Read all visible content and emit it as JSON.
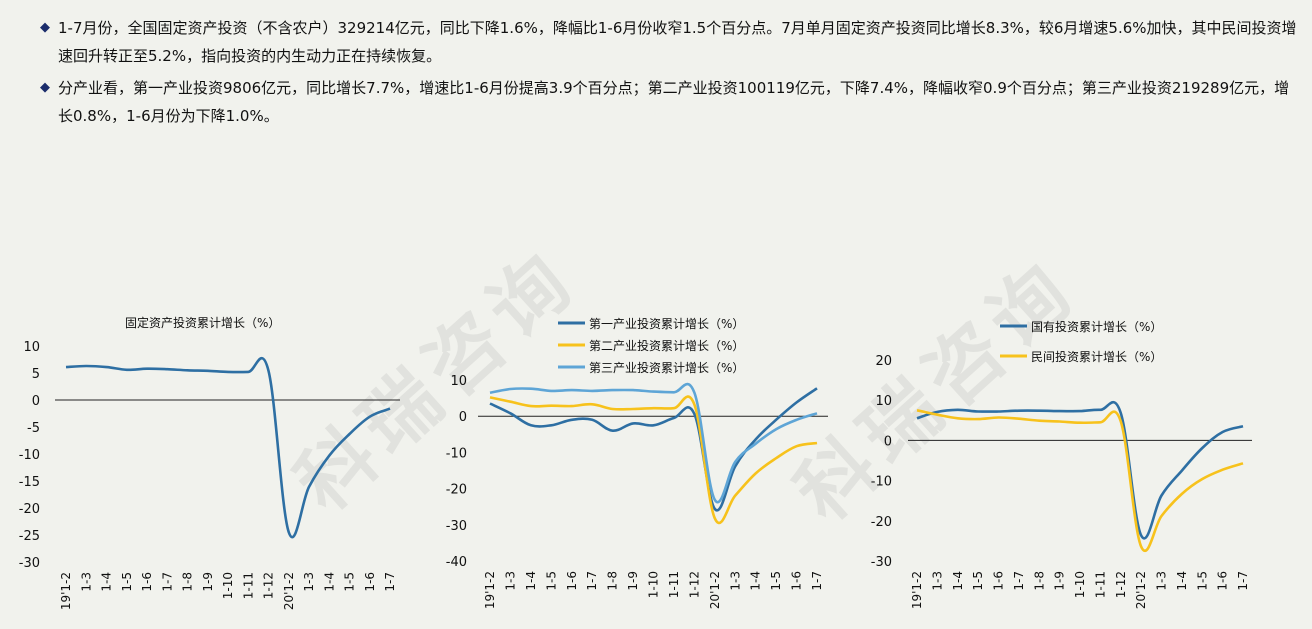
{
  "text": {
    "bullet1": "1-7月份，全国固定资产投资（不含农户）329214亿元，同比下降1.6%，降幅比1-6月份收窄1.5个百分点。7月单月固定资产投资同比增长8.3%，较6月增速5.6%加快，其中民间投资增速回升转正至5.2%，指向投资的内生动力正在持续恢复。",
    "bullet2": "分产业看，第一产业投资9806亿元，同比增长7.7%，增速比1-6月份提高3.9个百分点；第二产业投资100119亿元，下降7.4%，降幅收窄0.9个百分点；第三产业投资219289亿元，增长0.8%，1-6月份为下降1.0%。",
    "watermark": "科瑞咨询"
  },
  "colors": {
    "background": "#f1f2ed",
    "bullet_marker": "#1b2d6b",
    "dark_blue": "#2e6fa3",
    "yellow": "#f7c21c",
    "light_blue": "#5ea5d6"
  },
  "chart_data": [
    {
      "type": "line",
      "title": "固定资产投资累计增长（%）",
      "ylim": [
        -30,
        10
      ],
      "yticks": [
        10,
        5,
        0,
        -5,
        -10,
        -15,
        -20,
        -25,
        -30
      ],
      "categories": [
        "19'1-2",
        "1-3",
        "1-4",
        "1-5",
        "1-6",
        "1-7",
        "1-8",
        "1-9",
        "1-10",
        "1-11",
        "1-12",
        "20'1-2",
        "1-3",
        "1-4",
        "1-5",
        "1-6",
        "1-7"
      ],
      "tick_labels": [
        "19'1-2",
        "1-3",
        "1-4",
        "1-5",
        "1-6",
        "1-7",
        "1-8",
        "1-9",
        "1-10",
        "1-11",
        "1-12",
        "20'1-2",
        "1-3",
        "1-4",
        "1-5",
        "1-6",
        "1-7"
      ],
      "series": [
        {
          "name": "",
          "color": "#2e6fa3",
          "values": [
            6.1,
            6.3,
            6.1,
            5.6,
            5.8,
            5.7,
            5.5,
            5.4,
            5.2,
            5.2,
            5.4,
            -24.5,
            -16.1,
            -10.3,
            -6.3,
            -3.1,
            -1.6
          ]
        }
      ]
    },
    {
      "type": "line",
      "title": "",
      "ylim": [
        -40,
        10
      ],
      "yticks": [
        10,
        0,
        -10,
        -20,
        -30,
        -40
      ],
      "categories": [
        "19'1-2",
        "1-3",
        "1-4",
        "1-5",
        "1-6",
        "1-7",
        "1-8",
        "1-9",
        "1-10",
        "1-11",
        "1-12",
        "20'1-2",
        "1-3",
        "1-4",
        "1-5",
        "1-6",
        "1-7"
      ],
      "tick_labels": [
        "19'1-2",
        "1-3",
        "1-4",
        "1-5",
        "1-6",
        "1-7",
        "1-8",
        "1-9",
        "1-10",
        "1-11",
        "1-12",
        "20'1-2",
        "1-3",
        "1-4",
        "1-5",
        "1-6",
        "1-7"
      ],
      "legend": "top-left",
      "series": [
        {
          "name": "第一产业投资累计增长（%）",
          "color": "#2e6fa3",
          "values": [
            3.5,
            0.8,
            -2.5,
            -2.5,
            -1.0,
            -1.0,
            -4.0,
            -2.0,
            -2.5,
            -0.5,
            0.6,
            -25.6,
            -13.8,
            -6.4,
            -1.0,
            3.8,
            7.7
          ]
        },
        {
          "name": "第二产业投资累计增长（%）",
          "color": "#f7c21c",
          "values": [
            5.2,
            4.0,
            2.8,
            2.9,
            2.8,
            3.3,
            2.0,
            2.0,
            2.2,
            2.2,
            3.2,
            -28.2,
            -21.9,
            -15.8,
            -11.6,
            -8.3,
            -7.4
          ]
        },
        {
          "name": "第三产业投资累计增长（%）",
          "color": "#5ea5d6",
          "values": [
            6.5,
            7.5,
            7.6,
            7.0,
            7.2,
            7.0,
            7.2,
            7.2,
            6.8,
            6.6,
            6.5,
            -23.1,
            -12.6,
            -7.6,
            -3.6,
            -1.0,
            0.8
          ]
        }
      ]
    },
    {
      "type": "line",
      "title": "",
      "ylim": [
        -30,
        20
      ],
      "yticks": [
        20,
        10,
        0,
        -10,
        -20,
        -30
      ],
      "categories": [
        "19'1-2",
        "1-3",
        "1-4",
        "1-5",
        "1-6",
        "1-7",
        "1-8",
        "1-9",
        "1-10",
        "1-11",
        "1-12",
        "20'1-2",
        "1-3",
        "1-4",
        "1-5",
        "1-6",
        "1-7"
      ],
      "tick_labels": [
        "19'1-2",
        "1-3",
        "1-4",
        "1-5",
        "1-6",
        "1-7",
        "1-8",
        "1-9",
        "1-10",
        "1-11",
        "1-12",
        "20'1-2",
        "1-3",
        "1-4",
        "1-5",
        "1-6",
        "1-7"
      ],
      "legend": "top-right",
      "series": [
        {
          "name": "国有投资累计增长（%）",
          "color": "#2e6fa3",
          "values": [
            5.5,
            7.1,
            7.6,
            7.2,
            7.2,
            7.4,
            7.4,
            7.3,
            7.3,
            7.6,
            6.8,
            -23.6,
            -13.7,
            -7.5,
            -1.9,
            2.1,
            3.5
          ]
        },
        {
          "name": "民间投资累计增长（%）",
          "color": "#f7c21c",
          "values": [
            7.5,
            6.4,
            5.5,
            5.3,
            5.7,
            5.4,
            4.9,
            4.7,
            4.4,
            4.5,
            4.7,
            -26.4,
            -18.8,
            -13.3,
            -9.6,
            -7.3,
            -5.7
          ]
        }
      ]
    }
  ]
}
